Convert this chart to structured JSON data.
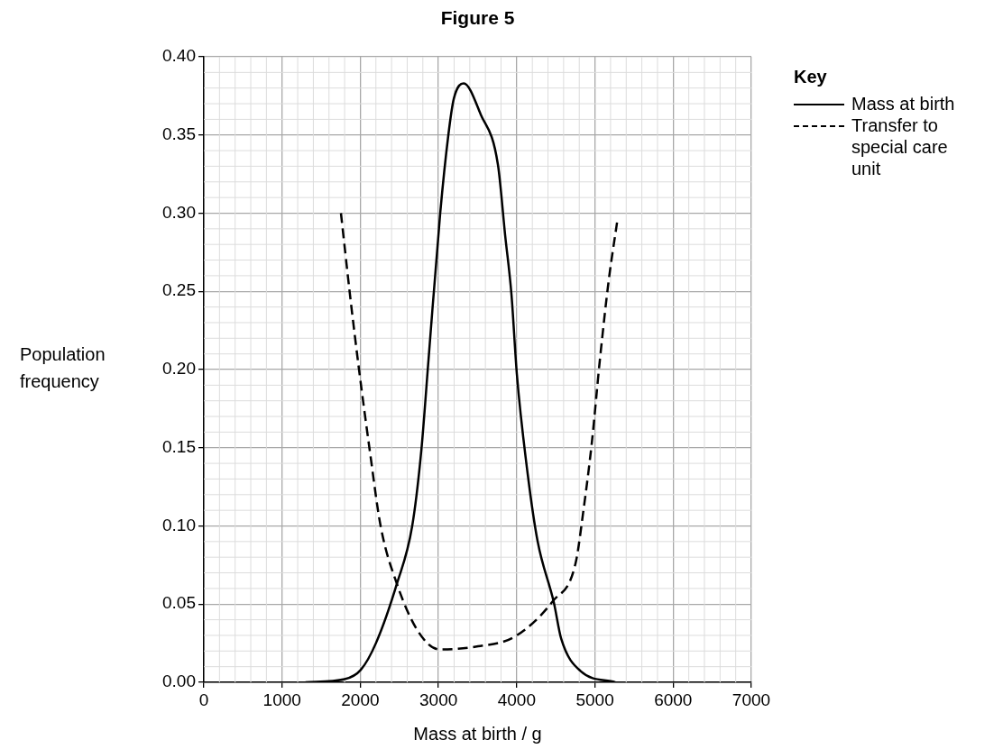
{
  "chart_data": {
    "type": "line",
    "title": "Figure 5",
    "xlabel": "Mass at birth / g",
    "ylabel": "Population frequency",
    "legend_title": "Key",
    "legend": "right",
    "grid": true,
    "marker": "none",
    "xlim": [
      0,
      7000
    ],
    "xticks": [
      0,
      1000,
      2000,
      3000,
      4000,
      5000,
      6000,
      7000
    ],
    "ylim": [
      0,
      0.4
    ],
    "yticks": [
      {
        "value": 0,
        "label": "0.00"
      },
      {
        "value": 0.05,
        "label": "0.05"
      },
      {
        "value": 0.1,
        "label": "0.10"
      },
      {
        "value": 0.15,
        "label": "0.15"
      },
      {
        "value": 0.2,
        "label": "0.20"
      },
      {
        "value": 0.25,
        "label": "0.25"
      },
      {
        "value": 0.3,
        "label": "0.30"
      },
      {
        "value": 0.35,
        "label": "0.35"
      },
      {
        "value": 0.4,
        "label": "0.40"
      }
    ],
    "series": [
      {
        "name": "Mass at birth",
        "color": "#000000",
        "line_style": "solid",
        "x": [
          1300,
          1800,
          2007,
          2200,
          2468,
          2664,
          2780,
          2872,
          3022,
          3126,
          3195,
          3322,
          3541,
          3760,
          3852,
          3933,
          4002,
          4141,
          4268,
          4475,
          4568,
          4821,
          5260
        ],
        "values": [
          0,
          0.002,
          0.008,
          0.025,
          0.063,
          0.1,
          0.148,
          0.206,
          0.3,
          0.35,
          0.373,
          0.383,
          0.363,
          0.331,
          0.286,
          0.248,
          0.197,
          0.133,
          0.09,
          0.051,
          0.028,
          0.007,
          0
        ]
      },
      {
        "name": "Transfer to special care unit",
        "color": "#000000",
        "line_style": "dashed",
        "x": [
          1753,
          1868,
          1984,
          2122,
          2260,
          2468,
          2734,
          3010,
          3506,
          3968,
          4464,
          4752,
          4856,
          4960,
          5063,
          5179,
          5283
        ],
        "values": [
          0.3,
          0.248,
          0.2,
          0.148,
          0.1,
          0.063,
          0.033,
          0.021,
          0.023,
          0.029,
          0.052,
          0.076,
          0.111,
          0.153,
          0.206,
          0.258,
          0.294
        ]
      }
    ]
  }
}
